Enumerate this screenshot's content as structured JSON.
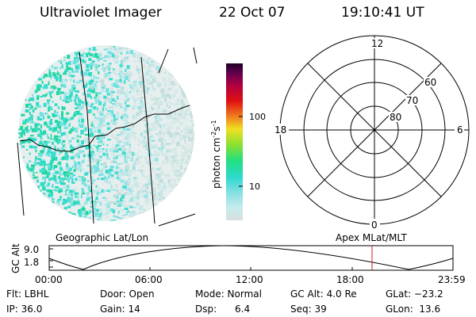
{
  "header": {
    "title": "Ultraviolet Imager",
    "date": "22 Oct 07",
    "time": "19:10:41 UT"
  },
  "colorbar": {
    "label": "photon cm",
    "label_exp1": "-2",
    "label_s": "s",
    "label_exp2": "-1",
    "ticks": [
      "100",
      "10"
    ]
  },
  "geo_panel": {
    "label": "Geographic Lat/Lon"
  },
  "polar": {
    "mlt_labels": [
      "12",
      "18",
      "6",
      "0"
    ],
    "lat_labels": [
      "60",
      "70",
      "80"
    ],
    "label": "Apex MLat/MLT"
  },
  "alt_plot": {
    "ylabel": "GC Alt",
    "yticks": [
      "9.0",
      "1.8"
    ],
    "xticks": [
      "00:00",
      "06:00",
      "12:00",
      "18:00",
      "23:59"
    ],
    "marker_time": "19:10:41"
  },
  "status": {
    "flt": "Flt: LBHL",
    "door": "Door: Open",
    "mode": "Mode: Normal",
    "gcalt": "GC Alt: 4.0 Re",
    "glat": "GLat: −23.2",
    "ip": "IP: 36.0",
    "gain": "Gain: 14",
    "dsp": "Dsp:      6.4",
    "seq": "Seq: 39",
    "glon": "GLon:  13.6"
  },
  "colors": {
    "accent_marker": "#d02020",
    "colorbar_stops": [
      "#d8dede",
      "#c6ecec",
      "#8be0e4",
      "#30d9d0",
      "#20e080",
      "#8ae030",
      "#f0e020",
      "#f08020",
      "#e01010",
      "#b00040",
      "#600050",
      "#200020"
    ]
  }
}
